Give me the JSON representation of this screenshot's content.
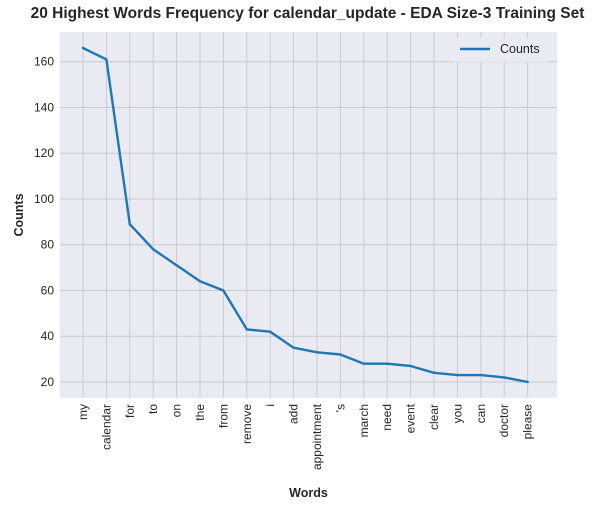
{
  "chart_data": {
    "type": "line",
    "title": "20 Highest Words Frequency for calendar_update - EDA Size-3 Training Set",
    "xlabel": "Words",
    "ylabel": "Counts",
    "categories": [
      "my",
      "calendar",
      "for",
      "to",
      "on",
      "the",
      "from",
      "remove",
      "i",
      "add",
      "appointment",
      "'s",
      "march",
      "need",
      "event",
      "clear",
      "you",
      "can",
      "doctor",
      "please"
    ],
    "series": [
      {
        "name": "Counts",
        "values": [
          166,
          161,
          89,
          78,
          71,
          64,
          60,
          43,
          42,
          35,
          33,
          32,
          28,
          28,
          27,
          24,
          23,
          23,
          22,
          20
        ]
      }
    ],
    "ylim": [
      13,
      173
    ],
    "yticks": [
      20,
      40,
      60,
      80,
      100,
      120,
      140,
      160
    ],
    "grid": true,
    "legend_position": "top-right",
    "colors": {
      "plot_background": "#eaeaf2",
      "grid": "#c7c9cc",
      "line": "#1f77b4"
    }
  }
}
